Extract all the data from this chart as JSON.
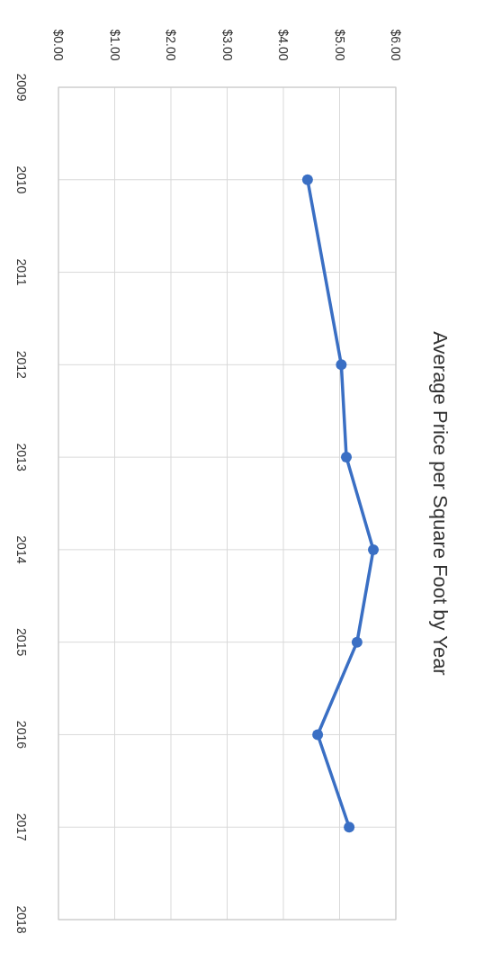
{
  "chart_data": {
    "type": "line",
    "orientation": "horizontal",
    "title": "Average Price per Square Foot by Year",
    "categories": [
      "2009",
      "2010",
      "2011",
      "2012",
      "2013",
      "2014",
      "2015",
      "2016",
      "2017",
      "2018"
    ],
    "series": [
      {
        "color": "#3a6fc4",
        "values": [
          null,
          4.43,
          null,
          5.03,
          5.12,
          5.6,
          5.31,
          4.61,
          5.17,
          null
        ]
      }
    ],
    "xlim": [
      0,
      6
    ],
    "xticks": [
      {
        "value": 0,
        "label": "$0.00"
      },
      {
        "value": 1,
        "label": "$1.00"
      },
      {
        "value": 2,
        "label": "$2.00"
      },
      {
        "value": 3,
        "label": "$3.00"
      },
      {
        "value": 4,
        "label": "$4.00"
      },
      {
        "value": 5,
        "label": "$5.00"
      },
      {
        "value": 6,
        "label": "$6.00"
      }
    ],
    "grid": true,
    "marker": "circle",
    "line_style": "solid"
  }
}
